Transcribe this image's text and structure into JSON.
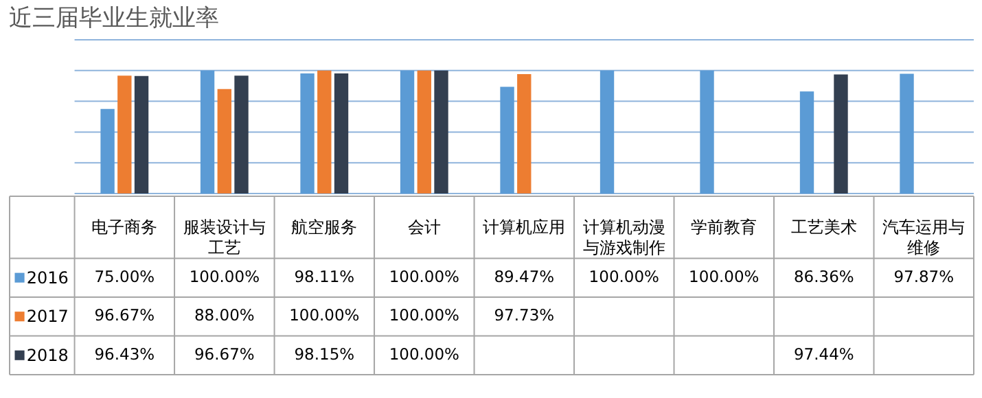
{
  "chart_data": {
    "type": "bar",
    "title": "近三届毕业生就业率",
    "categories": [
      "电子商务",
      "服装设计与工艺",
      "航空服务",
      "会计",
      "计算机应用",
      "计算机动漫与游戏制作",
      "学前教育",
      "工艺美术",
      "汽车运用与维修"
    ],
    "series": [
      {
        "name": "2016",
        "color": "#5b9bd5",
        "values": [
          75,
          100,
          98.11,
          100,
          89.47,
          100,
          100,
          86.36,
          97.87
        ],
        "value_labels": [
          "75.00%",
          "100.00%",
          "98.11%",
          "100.00%",
          "89.47%",
          "100.00%",
          "100.00%",
          "86.36%",
          "97.87%"
        ]
      },
      {
        "name": "2017",
        "color": "#ed7d31",
        "values": [
          96.67,
          88,
          100,
          100,
          97.73,
          null,
          null,
          null,
          null
        ],
        "value_labels": [
          "96.67%",
          "88.00%",
          "100.00%",
          "100.00%",
          "97.73%",
          null,
          null,
          null,
          null
        ]
      },
      {
        "name": "2018",
        "color": "#333f50",
        "values": [
          96.43,
          96.67,
          98.15,
          100,
          null,
          null,
          null,
          97.44,
          null
        ],
        "value_labels": [
          "96.43%",
          "96.67%",
          "98.15%",
          "100.00%",
          null,
          null,
          null,
          "97.44%",
          null
        ]
      }
    ],
    "ylim": [
      20,
      120
    ],
    "yticks": [
      {
        "value": 20,
        "label": null
      },
      {
        "value": 40,
        "label": null
      },
      {
        "value": 60,
        "label": null
      },
      {
        "value": 80,
        "label": null
      },
      {
        "value": 100,
        "label": null
      },
      {
        "value": 120,
        "label": null
      }
    ],
    "grid": "y",
    "legend": "left"
  }
}
